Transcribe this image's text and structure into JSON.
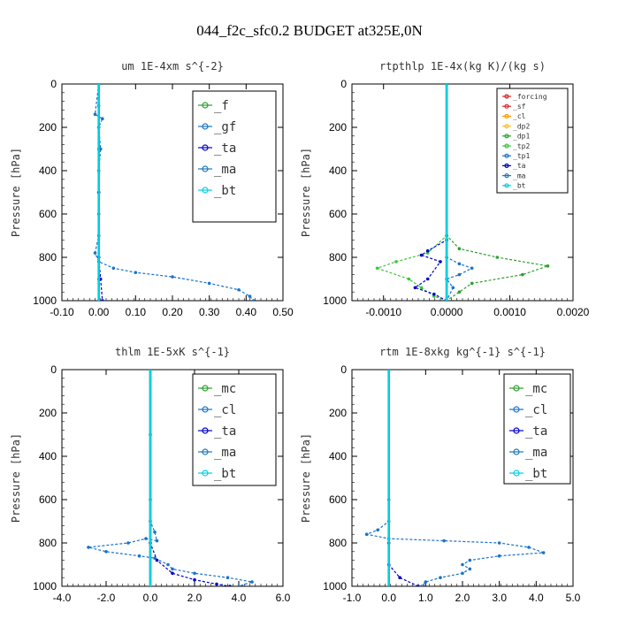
{
  "figure_title": "044_f2c_sfc0.2  BUDGET at325E,0N",
  "chart_data": [
    {
      "type": "line",
      "title": "um   1E-4xm s^{-2}",
      "ylabel": "Pressure [hPa]",
      "xlim": [
        -0.1,
        0.5
      ],
      "ylim": [
        1000,
        0
      ],
      "xticks": [
        "-0.10",
        "0.00",
        "0.10",
        "0.20",
        "0.30",
        "0.40",
        "0.50"
      ],
      "yticks": [
        "0",
        "200",
        "400",
        "600",
        "800",
        "1000"
      ],
      "legend": "top-right",
      "series": [
        {
          "name": "_f",
          "color": "#2ca02c",
          "points": [
            [
              0.0,
              0
            ],
            [
              0.0,
              100
            ],
            [
              0.0,
              200
            ],
            [
              0.0,
              300
            ],
            [
              0.0,
              400
            ],
            [
              0.0,
              500
            ],
            [
              0.0,
              600
            ],
            [
              0.0,
              700
            ],
            [
              0.0,
              800
            ],
            [
              0.0,
              900
            ],
            [
              0.0,
              1000
            ]
          ]
        },
        {
          "name": "_gf",
          "color": "#1a73c9",
          "points": [
            [
              0.0,
              0
            ],
            [
              -0.01,
              140
            ],
            [
              0.01,
              160
            ],
            [
              0.0,
              200
            ],
            [
              0.005,
              300
            ],
            [
              0.0,
              400
            ],
            [
              0.0,
              500
            ],
            [
              0.0,
              600
            ],
            [
              0.0,
              700
            ],
            [
              -0.01,
              780
            ],
            [
              0.0,
              820
            ],
            [
              0.04,
              850
            ],
            [
              0.1,
              870
            ],
            [
              0.2,
              890
            ],
            [
              0.3,
              920
            ],
            [
              0.38,
              950
            ],
            [
              0.41,
              980
            ],
            [
              0.42,
              1000
            ]
          ]
        },
        {
          "name": "_ta",
          "color": "#0000c8",
          "points": [
            [
              0.0,
              0
            ],
            [
              0.0,
              500
            ],
            [
              0.0,
              800
            ],
            [
              0.005,
              900
            ],
            [
              0.01,
              1000
            ]
          ]
        },
        {
          "name": "_ma",
          "color": "#1f77b4",
          "points": [
            [
              0.0,
              0
            ],
            [
              0.0,
              1000
            ]
          ]
        },
        {
          "name": "_bt",
          "color": "#00d0e0",
          "points": [
            [
              0.0,
              0
            ],
            [
              0.0,
              1000
            ]
          ]
        }
      ]
    },
    {
      "type": "line",
      "title": "rtpthlp   1E-4x(kg K)/(kg s)",
      "ylabel": "Pressure [hPa]",
      "xlim": [
        -0.0015,
        0.002
      ],
      "ylim": [
        1000,
        0
      ],
      "xticks": [
        "-0.0010",
        "0.0000",
        "0.0010",
        "0.0020"
      ],
      "yticks": [
        "0",
        "200",
        "400",
        "600",
        "800",
        "1000"
      ],
      "legend": "top-right",
      "series": [
        {
          "name": "_forcing",
          "color": "#d62728",
          "points": [
            [
              0.0,
              0
            ],
            [
              0.0,
              1000
            ]
          ]
        },
        {
          "name": "_sf",
          "color": "#d62728",
          "points": [
            [
              0.0,
              0
            ],
            [
              0.0,
              1000
            ]
          ]
        },
        {
          "name": "_cl",
          "color": "#ff9900",
          "points": [
            [
              0.0,
              0
            ],
            [
              0.0,
              1000
            ]
          ]
        },
        {
          "name": "_dp2",
          "color": "#ffbb33",
          "points": [
            [
              0.0,
              0
            ],
            [
              0.0,
              1000
            ]
          ]
        },
        {
          "name": "_dp1",
          "color": "#2ca02c",
          "points": [
            [
              0.0,
              0
            ],
            [
              0.0,
              700
            ],
            [
              0.0002,
              760
            ],
            [
              0.0008,
              800
            ],
            [
              0.0016,
              840
            ],
            [
              0.0012,
              880
            ],
            [
              0.0004,
              920
            ],
            [
              0.0002,
              960
            ],
            [
              0.0,
              1000
            ]
          ]
        },
        {
          "name": "_tp2",
          "color": "#39c839",
          "points": [
            [
              0.0,
              0
            ],
            [
              0.0,
              700
            ],
            [
              -0.0003,
              780
            ],
            [
              -0.0008,
              820
            ],
            [
              -0.0011,
              850
            ],
            [
              -0.0006,
              900
            ],
            [
              -0.0004,
              940
            ],
            [
              -0.0002,
              980
            ],
            [
              0.0,
              1000
            ]
          ]
        },
        {
          "name": "_tp1",
          "color": "#1a73c9",
          "points": [
            [
              0.0,
              0
            ],
            [
              0.0,
              700
            ],
            [
              0.0,
              800
            ],
            [
              0.0002,
              830
            ],
            [
              0.0004,
              850
            ],
            [
              0.0002,
              880
            ],
            [
              0.0,
              900
            ],
            [
              0.0001,
              940
            ],
            [
              0.0,
              1000
            ]
          ]
        },
        {
          "name": "_ta",
          "color": "#0000c8",
          "points": [
            [
              0.0,
              0
            ],
            [
              0.0,
              720
            ],
            [
              -0.0003,
              770
            ],
            [
              -0.0004,
              790
            ],
            [
              -0.0001,
              820
            ],
            [
              -0.0003,
              900
            ],
            [
              -0.0005,
              940
            ],
            [
              -0.0002,
              970
            ],
            [
              0.0,
              1000
            ]
          ]
        },
        {
          "name": "_ma",
          "color": "#1f77b4",
          "points": [
            [
              0.0,
              0
            ],
            [
              0.0,
              1000
            ]
          ]
        },
        {
          "name": "_bt",
          "color": "#00d0e0",
          "points": [
            [
              0.0,
              0
            ],
            [
              0.0,
              1000
            ]
          ]
        }
      ]
    },
    {
      "type": "line",
      "title": "thlm   1E-5xK s^{-1}",
      "ylabel": "Pressure [hPa]",
      "xlim": [
        -4.0,
        6.0
      ],
      "ylim": [
        1000,
        0
      ],
      "xticks": [
        "-4.0",
        "-2.0",
        "0.0",
        "2.0",
        "4.0",
        "6.0"
      ],
      "yticks": [
        "0",
        "200",
        "400",
        "600",
        "800",
        "1000"
      ],
      "legend": "top-right",
      "series": [
        {
          "name": "_mc",
          "color": "#2ca02c",
          "points": [
            [
              0.0,
              0
            ],
            [
              0.0,
              1000
            ]
          ]
        },
        {
          "name": "_cl",
          "color": "#1a73c9",
          "points": [
            [
              0.0,
              0
            ],
            [
              0.0,
              300
            ],
            [
              0.0,
              600
            ],
            [
              0.0,
              700
            ],
            [
              0.2,
              750
            ],
            [
              0.3,
              790
            ],
            [
              -0.2,
              780
            ],
            [
              -1.0,
              800
            ],
            [
              -2.8,
              820
            ],
            [
              -2.0,
              840
            ],
            [
              -0.5,
              860
            ],
            [
              0.2,
              870
            ],
            [
              0.8,
              900
            ],
            [
              1.0,
              920
            ],
            [
              2.0,
              940
            ],
            [
              3.5,
              960
            ],
            [
              4.6,
              980
            ],
            [
              4.0,
              1000
            ]
          ]
        },
        {
          "name": "_ta",
          "color": "#0000c8",
          "points": [
            [
              0.0,
              0
            ],
            [
              0.0,
              800
            ],
            [
              0.3,
              880
            ],
            [
              1.0,
              940
            ],
            [
              2.0,
              970
            ],
            [
              3.0,
              990
            ],
            [
              3.6,
              1000
            ]
          ]
        },
        {
          "name": "_ma",
          "color": "#1f77b4",
          "points": [
            [
              0.0,
              0
            ],
            [
              0.0,
              1000
            ]
          ]
        },
        {
          "name": "_bt",
          "color": "#00d0e0",
          "points": [
            [
              0.0,
              0
            ],
            [
              0.0,
              1000
            ]
          ]
        }
      ]
    },
    {
      "type": "line",
      "title": "rtm   1E-8xkg kg^{-1} s^{-1}",
      "ylabel": "Pressure [hPa]",
      "xlim": [
        -1.0,
        5.0
      ],
      "ylim": [
        1000,
        0
      ],
      "xticks": [
        "-1.0",
        "0.0",
        "1.0",
        "2.0",
        "3.0",
        "4.0",
        "5.0"
      ],
      "yticks": [
        "0",
        "200",
        "400",
        "600",
        "800",
        "1000"
      ],
      "legend": "top-right",
      "series": [
        {
          "name": "_mc",
          "color": "#2ca02c",
          "points": [
            [
              0.0,
              0
            ],
            [
              0.0,
              1000
            ]
          ]
        },
        {
          "name": "_cl",
          "color": "#1a73c9",
          "points": [
            [
              0.0,
              0
            ],
            [
              0.0,
              600
            ],
            [
              0.0,
              700
            ],
            [
              -0.3,
              740
            ],
            [
              -0.6,
              760
            ],
            [
              0.0,
              780
            ],
            [
              1.5,
              790
            ],
            [
              3.0,
              800
            ],
            [
              3.8,
              820
            ],
            [
              4.2,
              845
            ],
            [
              3.0,
              860
            ],
            [
              2.2,
              880
            ],
            [
              2.0,
              900
            ],
            [
              2.2,
              920
            ],
            [
              2.0,
              940
            ],
            [
              1.4,
              960
            ],
            [
              1.0,
              980
            ],
            [
              0.9,
              1000
            ]
          ]
        },
        {
          "name": "_ta",
          "color": "#0000c8",
          "points": [
            [
              0.0,
              0
            ],
            [
              0.0,
              800
            ],
            [
              0.0,
              900
            ],
            [
              0.3,
              960
            ],
            [
              0.8,
              1000
            ]
          ]
        },
        {
          "name": "_ma",
          "color": "#1f77b4",
          "points": [
            [
              0.0,
              0
            ],
            [
              0.0,
              1000
            ]
          ]
        },
        {
          "name": "_bt",
          "color": "#00d0e0",
          "points": [
            [
              0.0,
              0
            ],
            [
              0.0,
              1000
            ]
          ]
        }
      ]
    }
  ]
}
